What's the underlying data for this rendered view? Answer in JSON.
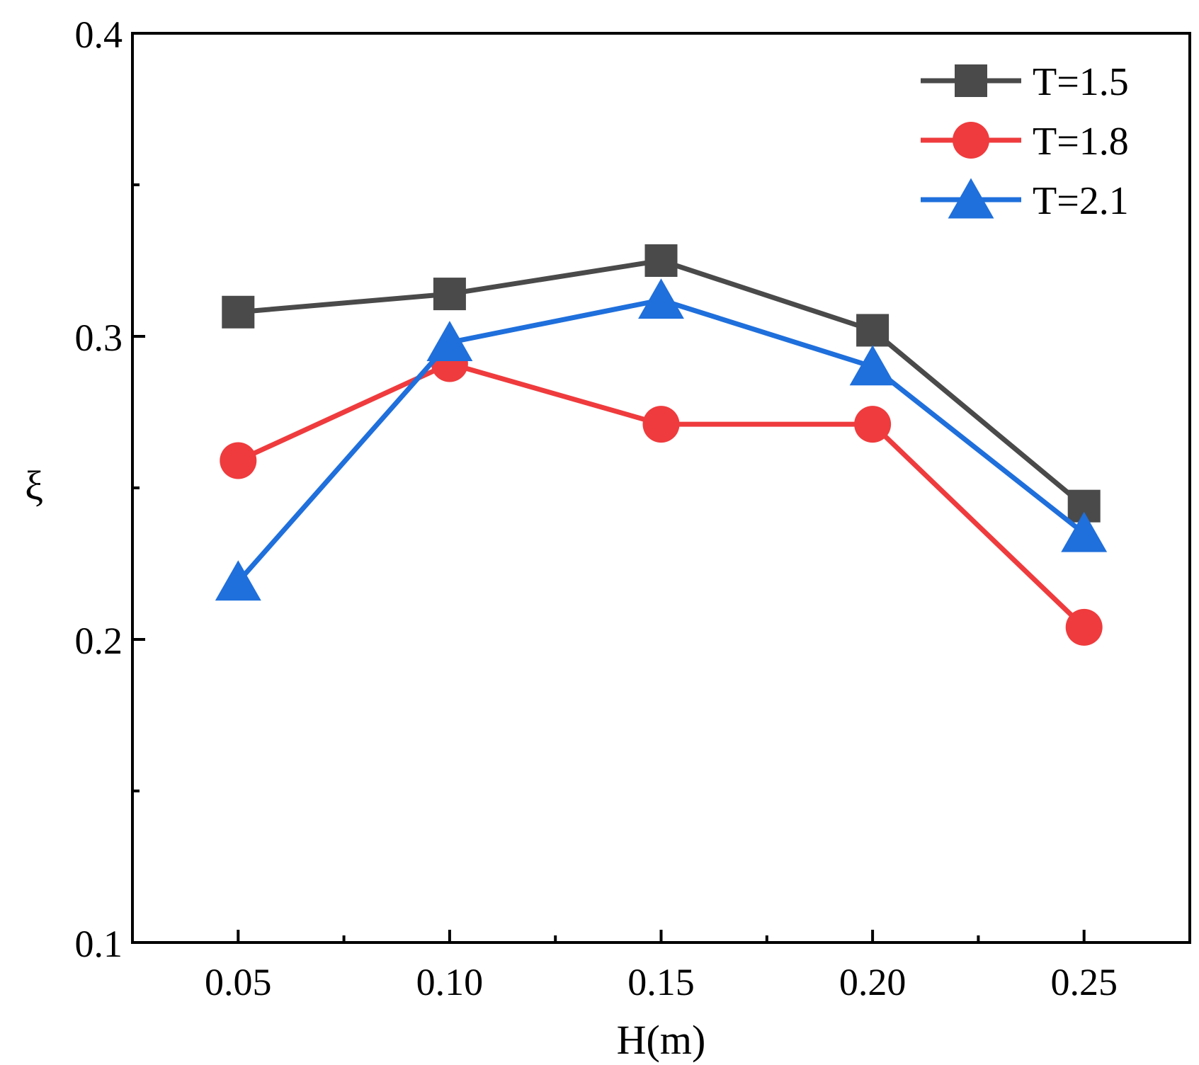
{
  "chart_data": {
    "type": "line",
    "title": "",
    "xlabel": "H(m)",
    "ylabel": "ξ",
    "x": [
      0.05,
      0.1,
      0.15,
      0.2,
      0.25
    ],
    "xlim": [
      0.025,
      0.275
    ],
    "ylim": [
      0.1,
      0.4
    ],
    "x_ticks": [
      0.05,
      0.1,
      0.15,
      0.2,
      0.25
    ],
    "x_tick_labels": [
      "0.05",
      "0.10",
      "0.15",
      "0.20",
      "0.25"
    ],
    "x_minor_ticks": [
      0.075,
      0.125,
      0.175,
      0.225
    ],
    "y_ticks": [
      0.1,
      0.2,
      0.3,
      0.4
    ],
    "y_tick_labels": [
      "0.1",
      "0.2",
      "0.3",
      "0.4"
    ],
    "y_minor_ticks": [
      0.15,
      0.25,
      0.35
    ],
    "grid": false,
    "legend_position": "top-right",
    "series": [
      {
        "name": "T=1.5",
        "marker": "square",
        "color": "#4a4a4a",
        "values": [
          0.308,
          0.314,
          0.325,
          0.302,
          0.244
        ]
      },
      {
        "name": "T=1.8",
        "marker": "circle",
        "color": "#ef3b3d",
        "values": [
          0.259,
          0.291,
          0.271,
          0.271,
          0.204
        ]
      },
      {
        "name": "T=2.1",
        "marker": "triangle",
        "color": "#1f6fdc",
        "values": [
          0.219,
          0.298,
          0.312,
          0.29,
          0.235
        ]
      }
    ]
  }
}
